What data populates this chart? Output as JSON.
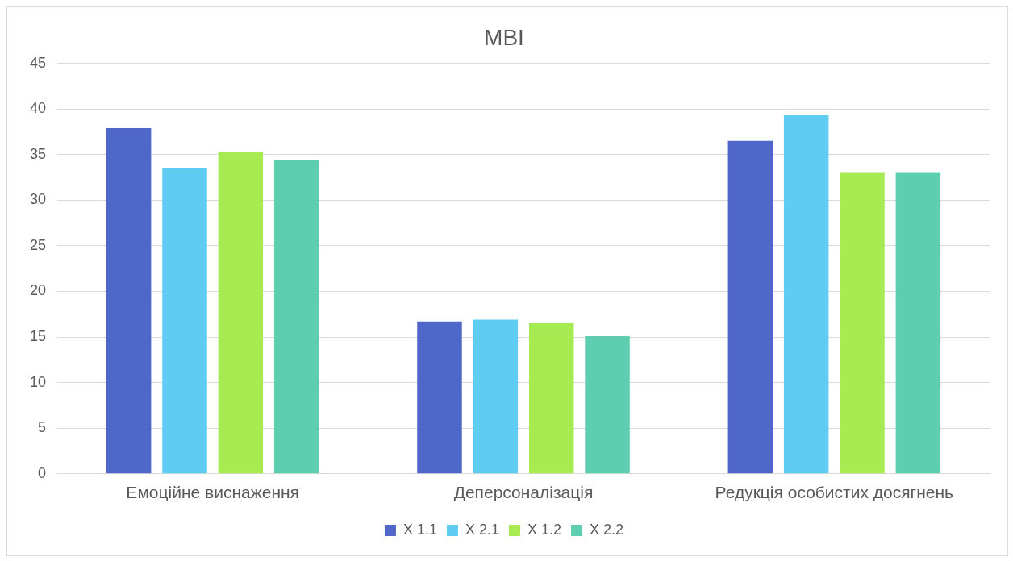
{
  "chart_data": {
    "type": "bar",
    "title": "MBI",
    "categories": [
      "Емоційне виснаження",
      "Деперсоналізація",
      "Редукція особистих досягнень"
    ],
    "series": [
      {
        "name": "X 1.1",
        "color": "#4e67c8",
        "values": [
          37.9,
          16.7,
          36.5
        ]
      },
      {
        "name": "X 2.1",
        "color": "#5eccf3",
        "values": [
          33.5,
          16.9,
          39.3
        ]
      },
      {
        "name": "X 1.2",
        "color": "#a7ea52",
        "values": [
          35.3,
          16.5,
          33.0
        ]
      },
      {
        "name": "X 2.2",
        "color": "#5dceaf",
        "values": [
          34.4,
          15.1,
          33.0
        ]
      }
    ],
    "ylim": [
      0,
      45
    ],
    "yticks": [
      0,
      5,
      10,
      15,
      20,
      25,
      30,
      35,
      40,
      45
    ],
    "grid": "y",
    "legend": "bottom"
  }
}
